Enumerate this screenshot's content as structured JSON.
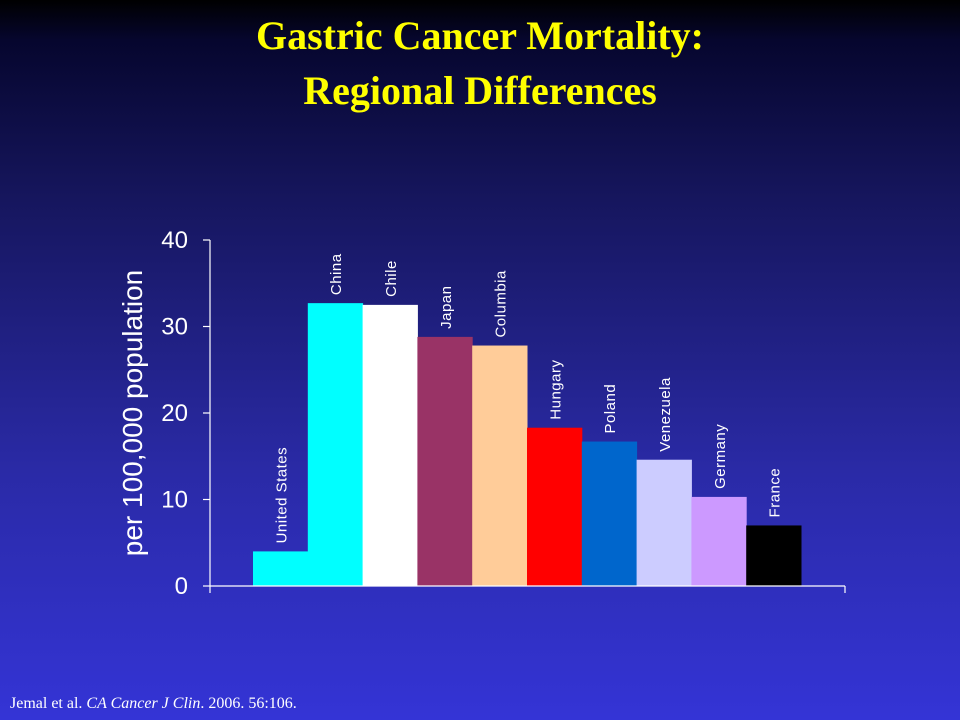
{
  "slide": {
    "title_line1": "Gastric Cancer Mortality:",
    "title_line2": "Regional Differences",
    "citation_authors": "Jemal et al.",
    "citation_journal": "CA Cancer J Clin",
    "citation_rest": ". 2006. 56:106."
  },
  "chart_data": {
    "type": "bar",
    "ylabel": "per 100,000 population",
    "xlabel": "",
    "ylim": [
      0,
      40
    ],
    "yticks": [
      0,
      10,
      20,
      30,
      40
    ],
    "grid": false,
    "legend": "none",
    "categories": [
      "United States",
      "China",
      "Chile",
      "Japan",
      "Columbia",
      "Hungary",
      "Poland",
      "Venezuela",
      "Germany",
      "France"
    ],
    "values": [
      4,
      32.7,
      32.5,
      28.8,
      27.8,
      18.3,
      16.7,
      14.6,
      10.3,
      7
    ],
    "colors": [
      "#00ffff",
      "#00ffff",
      "#ffffff",
      "#993366",
      "#ffcc99",
      "#ff0000",
      "#0066cc",
      "#ccccff",
      "#cc99ff",
      "#000000"
    ]
  }
}
